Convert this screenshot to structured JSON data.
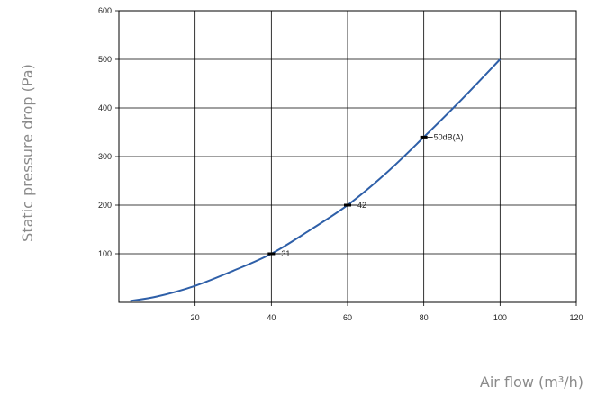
{
  "chart_data": {
    "type": "line",
    "xlabel": "Air flow (m³/h)",
    "ylabel": "Static pressure drop (Pa)",
    "xlim": [
      0,
      120
    ],
    "ylim": [
      0,
      600
    ],
    "x_ticks": [
      "20",
      "40",
      "60",
      "80",
      "100",
      "120"
    ],
    "y_ticks": [
      "100",
      "200",
      "300",
      "400",
      "500",
      "600"
    ],
    "grid": true,
    "series": [
      {
        "color": "#2e5fa8",
        "x": [
          3,
          10,
          20,
          30,
          40,
          50,
          60,
          70,
          80,
          90,
          100
        ],
        "y": [
          3,
          12,
          34,
          65,
          100,
          148,
          200,
          265,
          340,
          418,
          500
        ]
      }
    ],
    "annotations": [
      {
        "x": 40,
        "y": 100,
        "text": "31"
      },
      {
        "x": 60,
        "y": 200,
        "text": "42"
      },
      {
        "x": 80,
        "y": 340,
        "text": "50dB(A)"
      }
    ]
  }
}
